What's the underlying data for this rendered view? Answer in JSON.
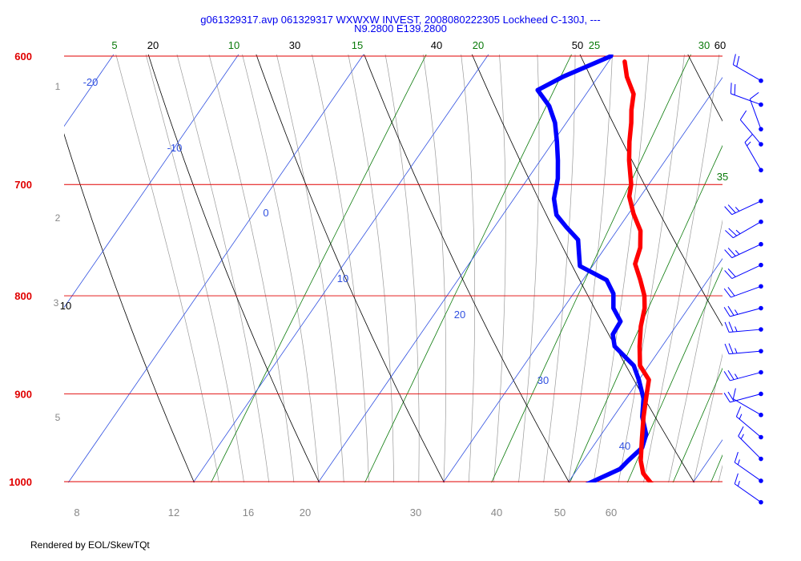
{
  "title_line1": "g061329317.avp 061329317 WXWXW INVEST, 2008080222305 Lockheed C-130J, ---",
  "title_line2": "N9.2800 E139.2800",
  "footer": "Rendered by EOL/SkewTQt",
  "colors": {
    "isobar": "#e00000",
    "isotherm": "#3050e0",
    "dry_adiabat": "#000000",
    "mixing_ratio": "#0a7a0a",
    "moist_adiabat": "#9a9a9a",
    "temperature": "#ff0000",
    "dewpoint": "#0000ff",
    "wind": "#0000ff"
  },
  "chart_data": {
    "type": "skew-t",
    "x_axis_ticks": [
      "8",
      "12",
      "16",
      "20",
      "30",
      "40",
      "50",
      "60"
    ],
    "pressure_levels": [
      {
        "label": "600",
        "hpa": 600
      },
      {
        "label": "700",
        "hpa": 700
      },
      {
        "label": "800",
        "hpa": 800
      },
      {
        "label": "900",
        "hpa": 900
      },
      {
        "label": "1000",
        "hpa": 1000
      }
    ],
    "height_labels": [
      "1",
      "2",
      "3",
      "5"
    ],
    "isotherm_labels": [
      "-20",
      "-10",
      "0",
      "10",
      "20",
      "30",
      "40"
    ],
    "dry_adiabat_labels": [
      "20",
      "30",
      "40",
      "50",
      "60",
      "10"
    ],
    "mixing_ratio_labels": [
      "5",
      "10",
      "15",
      "20",
      "25",
      "30",
      "35"
    ],
    "temperature_series": [
      {
        "p": 1010,
        "t": 27.5
      },
      {
        "p": 1000,
        "t": 26.5
      },
      {
        "p": 990,
        "t": 25.5
      },
      {
        "p": 975,
        "t": 24.6
      },
      {
        "p": 950,
        "t": 23.5
      },
      {
        "p": 925,
        "t": 22.4
      },
      {
        "p": 900,
        "t": 21.4
      },
      {
        "p": 885,
        "t": 20.8
      },
      {
        "p": 870,
        "t": 19.3
      },
      {
        "p": 850,
        "t": 18.2
      },
      {
        "p": 830,
        "t": 17.2
      },
      {
        "p": 812,
        "t": 16.5
      },
      {
        "p": 800,
        "t": 15.8
      },
      {
        "p": 785,
        "t": 14.6
      },
      {
        "p": 770,
        "t": 13.3
      },
      {
        "p": 755,
        "t": 12.8
      },
      {
        "p": 740,
        "t": 11.9
      },
      {
        "p": 725,
        "t": 10.4
      },
      {
        "p": 710,
        "t": 9.1
      },
      {
        "p": 700,
        "t": 8.6
      },
      {
        "p": 680,
        "t": 7.1
      },
      {
        "p": 665,
        "t": 6.1
      },
      {
        "p": 650,
        "t": 5.2
      },
      {
        "p": 640,
        "t": 4.5
      },
      {
        "p": 628,
        "t": 3.8
      },
      {
        "p": 615,
        "t": 2.3
      },
      {
        "p": 604,
        "t": 1.3
      }
    ],
    "dewpoint_series": [
      {
        "p": 1010,
        "td": 21.8
      },
      {
        "p": 1005,
        "td": 21.4
      },
      {
        "p": 995,
        "td": 22.4
      },
      {
        "p": 985,
        "td": 23.4
      },
      {
        "p": 975,
        "td": 23.6
      },
      {
        "p": 960,
        "td": 24.0
      },
      {
        "p": 945,
        "td": 23.6
      },
      {
        "p": 925,
        "td": 22.3
      },
      {
        "p": 905,
        "td": 21.4
      },
      {
        "p": 885,
        "td": 20.0
      },
      {
        "p": 870,
        "td": 18.8
      },
      {
        "p": 850,
        "td": 16.2
      },
      {
        "p": 838,
        "td": 15.4
      },
      {
        "p": 825,
        "td": 15.3
      },
      {
        "p": 812,
        "td": 14.0
      },
      {
        "p": 798,
        "td": 13.2
      },
      {
        "p": 785,
        "td": 11.9
      },
      {
        "p": 772,
        "td": 9.0
      },
      {
        "p": 760,
        "td": 8.2
      },
      {
        "p": 748,
        "td": 7.4
      },
      {
        "p": 737,
        "td": 5.8
      },
      {
        "p": 726,
        "td": 4.3
      },
      {
        "p": 712,
        "td": 3.2
      },
      {
        "p": 695,
        "td": 2.4
      },
      {
        "p": 680,
        "td": 1.4
      },
      {
        "p": 665,
        "td": 0.3
      },
      {
        "p": 650,
        "td": -0.9
      },
      {
        "p": 637,
        "td": -2.3
      },
      {
        "p": 625,
        "td": -4.1
      },
      {
        "p": 615,
        "td": -2.8
      },
      {
        "p": 600,
        "td": -0.1
      }
    ],
    "wind_barbs": [
      {
        "p": 618,
        "dir": 300,
        "spd": 20
      },
      {
        "p": 636,
        "dir": 290,
        "spd": 20
      },
      {
        "p": 655,
        "dir": 340,
        "spd": 10
      },
      {
        "p": 667,
        "dir": 320,
        "spd": 10
      },
      {
        "p": 688,
        "dir": 330,
        "spd": 15
      },
      {
        "p": 714,
        "dir": 245,
        "spd": 25
      },
      {
        "p": 732,
        "dir": 240,
        "spd": 25
      },
      {
        "p": 752,
        "dir": 245,
        "spd": 25
      },
      {
        "p": 771,
        "dir": 245,
        "spd": 20
      },
      {
        "p": 791,
        "dir": 250,
        "spd": 20
      },
      {
        "p": 812,
        "dir": 255,
        "spd": 25
      },
      {
        "p": 833,
        "dir": 265,
        "spd": 25
      },
      {
        "p": 855,
        "dir": 265,
        "spd": 25
      },
      {
        "p": 877,
        "dir": 255,
        "spd": 25
      },
      {
        "p": 900,
        "dir": 255,
        "spd": 20
      },
      {
        "p": 923,
        "dir": 300,
        "spd": 10
      },
      {
        "p": 948,
        "dir": 310,
        "spd": 15
      },
      {
        "p": 973,
        "dir": 315,
        "spd": 15
      },
      {
        "p": 999,
        "dir": 305,
        "spd": 15
      },
      {
        "p": 1025,
        "dir": 305,
        "spd": 15
      }
    ]
  }
}
